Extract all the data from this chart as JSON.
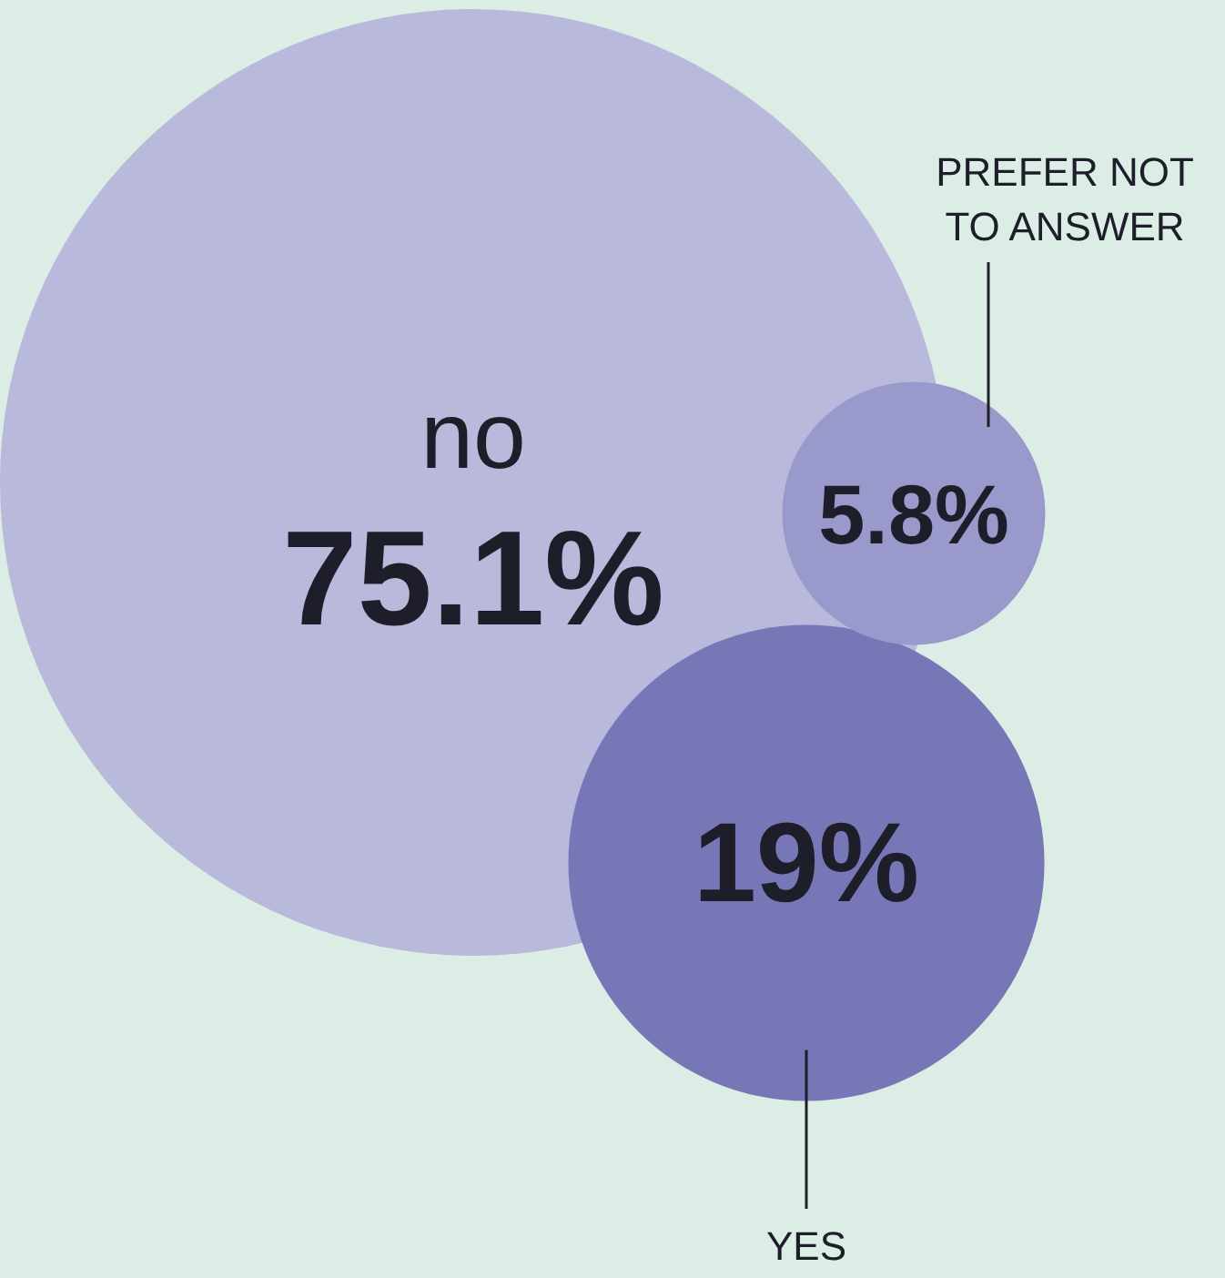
{
  "chart_data": {
    "type": "other",
    "categories": [
      "no",
      "YES",
      "PREFER NOT TO ANSWER"
    ],
    "values": [
      75.1,
      19,
      5.8
    ],
    "value_labels": [
      "75.1%",
      "19%",
      "5.8%"
    ],
    "colors": [
      "#b9b9dc",
      "#7777b8",
      "#9999cc"
    ]
  }
}
